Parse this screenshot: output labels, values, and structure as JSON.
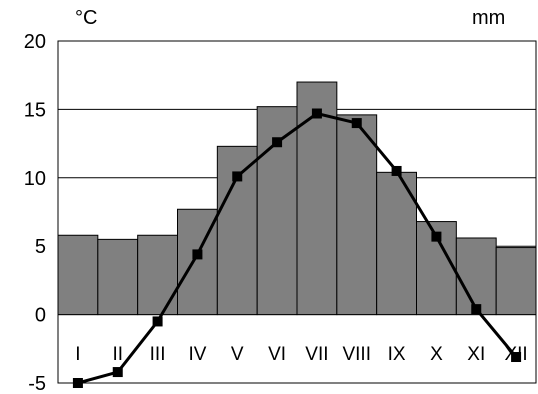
{
  "chart_data": {
    "type": "bar",
    "categories": [
      "I",
      "II",
      "III",
      "IV",
      "V",
      "VI",
      "VII",
      "VIII",
      "IX",
      "X",
      "XI",
      "XII"
    ],
    "y_unit_left": "°C",
    "y_unit_right": "mm",
    "ylim": [
      -5,
      20
    ],
    "yticks": [
      "20",
      "15",
      "10",
      "5",
      "0",
      "-5"
    ],
    "ytick_values": [
      20,
      15,
      10,
      5,
      0,
      -5
    ],
    "grid": true,
    "series": [
      {
        "type": "bar",
        "values": [
          5.8,
          5.5,
          5.8,
          7.7,
          12.3,
          15.2,
          17.0,
          14.6,
          10.4,
          6.8,
          5.6,
          4.9
        ],
        "color": "#808080"
      },
      {
        "type": "line",
        "values": [
          -5.0,
          -4.2,
          -0.5,
          4.4,
          10.1,
          12.6,
          14.7,
          14.0,
          10.5,
          5.7,
          0.4,
          -3.1
        ],
        "color": "#000000"
      }
    ]
  }
}
